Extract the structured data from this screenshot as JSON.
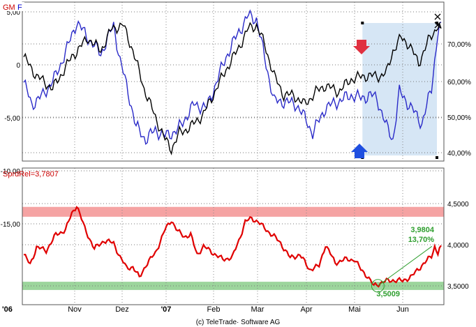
{
  "colors": {
    "black_series": "#000000",
    "blue_series": "#2a2ac8",
    "spread_line": "#e00000",
    "highlight_fill": "#d6e6f5",
    "red_band": "#f5a3a3",
    "green_band": "#9cd59c",
    "annotation_green": "#2e9e2e",
    "arrow_red": "#e03040",
    "arrow_blue": "#1f4fe0",
    "label_red": "#cc0000",
    "label_blue": "#0000cc"
  },
  "top_panel": {
    "label_gm": "GM",
    "label_f": "F"
  },
  "bottom_panel": {
    "label": "SprdRel=3,7807"
  },
  "x_axis": {
    "labels": [
      "'06",
      "Nov",
      "Dez",
      "'07",
      "Feb",
      "Mar",
      "Apr",
      "Mai",
      "Jun"
    ]
  },
  "footer": {
    "copyright": "(c) TeleTrade· Software AG"
  },
  "chart_data": [
    {
      "type": "line",
      "title": "",
      "n_points": 260,
      "y_left_ticks": [
        "5,00",
        "0",
        "-5,00",
        "-10,00",
        "-15,00"
      ],
      "y_left_values": [
        5,
        0,
        -5,
        -10,
        -15
      ],
      "y_right_ticks": [
        "70,00%",
        "60,00%",
        "50,00%",
        "40,00%"
      ],
      "y_right_values": [
        70,
        60,
        50,
        40
      ],
      "y_right_range": [
        38,
        80
      ],
      "series": [
        {
          "name": "GM",
          "color_key": "black_series",
          "anchors": [
            [
              0,
              68
            ],
            [
              8,
              62
            ],
            [
              18,
              58
            ],
            [
              30,
              68
            ],
            [
              40,
              74
            ],
            [
              48,
              70
            ],
            [
              55,
              77
            ],
            [
              62,
              78
            ],
            [
              68,
              70
            ],
            [
              75,
              58
            ],
            [
              82,
              49
            ],
            [
              88,
              42
            ],
            [
              92,
              39
            ],
            [
              97,
              44
            ],
            [
              104,
              46
            ],
            [
              112,
              50
            ],
            [
              120,
              58
            ],
            [
              126,
              64
            ],
            [
              133,
              70
            ],
            [
              140,
              77
            ],
            [
              145,
              78
            ],
            [
              150,
              72
            ],
            [
              156,
              62
            ],
            [
              162,
              56
            ],
            [
              168,
              56
            ],
            [
              175,
              53
            ],
            [
              182,
              57
            ],
            [
              188,
              59
            ],
            [
              196,
              57
            ],
            [
              204,
              61
            ],
            [
              212,
              62
            ],
            [
              222,
              62
            ],
            [
              226,
              63
            ],
            [
              230,
              70
            ],
            [
              235,
              74
            ],
            [
              240,
              72
            ],
            [
              246,
              66
            ],
            [
              252,
              73
            ],
            [
              258,
              78
            ],
            [
              260,
              77
            ]
          ]
        },
        {
          "name": "F",
          "color_key": "blue_series",
          "anchors": [
            [
              0,
              60
            ],
            [
              5,
              53
            ],
            [
              12,
              56
            ],
            [
              20,
              62
            ],
            [
              28,
              72
            ],
            [
              33,
              79
            ],
            [
              40,
              74
            ],
            [
              48,
              69
            ],
            [
              56,
              78
            ],
            [
              60,
              67
            ],
            [
              65,
              57
            ],
            [
              70,
              46
            ],
            [
              76,
              42
            ],
            [
              82,
              45
            ],
            [
              88,
              43
            ],
            [
              96,
              45
            ],
            [
              106,
              53
            ],
            [
              114,
              52
            ],
            [
              120,
              60
            ],
            [
              126,
              68
            ],
            [
              134,
              76
            ],
            [
              140,
              81
            ],
            [
              145,
              80
            ],
            [
              150,
              68
            ],
            [
              156,
              54
            ],
            [
              162,
              54
            ],
            [
              170,
              53
            ],
            [
              176,
              48
            ],
            [
              180,
              44
            ],
            [
              188,
              52
            ],
            [
              196,
              54
            ],
            [
              204,
              56
            ],
            [
              210,
              55
            ],
            [
              216,
              56
            ],
            [
              220,
              55
            ],
            [
              226,
              46
            ],
            [
              230,
              42
            ],
            [
              234,
              57
            ],
            [
              240,
              53
            ],
            [
              248,
              47
            ],
            [
              254,
              58
            ],
            [
              258,
              76
            ],
            [
              260,
              79
            ]
          ]
        }
      ],
      "highlight_region_x": [
        211,
        260
      ],
      "markers": [
        "red-down-arrow",
        "blue-up-arrow"
      ]
    },
    {
      "type": "line",
      "title": "",
      "n_points": 260,
      "y_ticks": [
        "4,5000",
        "4,0000",
        "3,5000"
      ],
      "y_values": [
        4.5,
        4.0,
        3.5
      ],
      "y_range": [
        3.3,
        4.65
      ],
      "series": [
        {
          "name": "SprdRel",
          "color_key": "spread_line",
          "anchors": [
            [
              0,
              3.88
            ],
            [
              4,
              3.76
            ],
            [
              8,
              3.97
            ],
            [
              14,
              3.93
            ],
            [
              20,
              4.12
            ],
            [
              26,
              4.18
            ],
            [
              30,
              4.38
            ],
            [
              33,
              4.48
            ],
            [
              38,
              4.2
            ],
            [
              44,
              3.95
            ],
            [
              50,
              4.05
            ],
            [
              56,
              4.02
            ],
            [
              60,
              3.85
            ],
            [
              64,
              3.72
            ],
            [
              68,
              3.73
            ],
            [
              72,
              3.6
            ],
            [
              76,
              3.75
            ],
            [
              82,
              3.9
            ],
            [
              88,
              4.18
            ],
            [
              92,
              4.3
            ],
            [
              96,
              4.16
            ],
            [
              100,
              4.1
            ],
            [
              104,
              4.12
            ],
            [
              108,
              3.88
            ],
            [
              112,
              3.98
            ],
            [
              118,
              3.9
            ],
            [
              124,
              3.82
            ],
            [
              130,
              3.85
            ],
            [
              134,
              4.05
            ],
            [
              138,
              4.28
            ],
            [
              142,
              4.32
            ],
            [
              146,
              4.28
            ],
            [
              150,
              4.2
            ],
            [
              156,
              4.1
            ],
            [
              160,
              4.02
            ],
            [
              166,
              3.84
            ],
            [
              172,
              3.88
            ],
            [
              178,
              3.7
            ],
            [
              184,
              3.74
            ],
            [
              188,
              4.0
            ],
            [
              194,
              3.78
            ],
            [
              200,
              3.82
            ],
            [
              206,
              3.82
            ],
            [
              210,
              3.7
            ],
            [
              214,
              3.62
            ],
            [
              218,
              3.5
            ],
            [
              224,
              3.55
            ],
            [
              230,
              3.57
            ],
            [
              236,
              3.56
            ],
            [
              242,
              3.62
            ],
            [
              248,
              3.75
            ],
            [
              254,
              3.86
            ],
            [
              256,
              3.98
            ],
            [
              258,
              3.9
            ],
            [
              260,
              3.99
            ]
          ]
        }
      ],
      "bands": [
        {
          "from": 4.34,
          "to": 4.46,
          "color_key": "red_band"
        },
        {
          "from": 3.45,
          "to": 3.55,
          "color_key": "green_band"
        }
      ],
      "annotations": [
        {
          "text": "3,9804",
          "at_index": 256,
          "value": 3.9804
        },
        {
          "text": "13,70%",
          "at_index": 256
        },
        {
          "text": "3,5009",
          "at_index": 218,
          "value": 3.5009
        }
      ]
    }
  ]
}
